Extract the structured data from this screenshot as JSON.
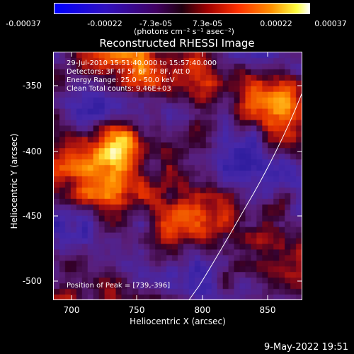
{
  "colorbar": {
    "labels": [
      "-0.00037",
      "-0.00022",
      "-7.3e-05",
      "7.3e-05",
      "0.00022",
      "0.00037"
    ],
    "unit": "(photons cm⁻² s⁻¹ asec⁻²)"
  },
  "title": "Reconstructed RHESSI Image",
  "info": {
    "line1": "29-Jul-2010 15:51:40.000 to 15:57:40.000",
    "line2": "Detectors: 3F 4F 5F 6F 7F 8F, Att 0",
    "line3": "Energy Range: 25.0 - 50.0 keV",
    "line4": "Clean     Total counts: 9.46E+03"
  },
  "peak": "Position of Peak = [739,-396]",
  "axes": {
    "xlabel": "Heliocentric X (arcsec)",
    "ylabel": "Heliocentric Y (arcsec)",
    "xticks": [
      "700",
      "750",
      "800",
      "850"
    ],
    "yticks": [
      "-350",
      "-400",
      "-450",
      "-500"
    ]
  },
  "footer": "9-May-2022 19:51",
  "colors": {
    "background": "#000000",
    "text": "#ffffff"
  }
}
